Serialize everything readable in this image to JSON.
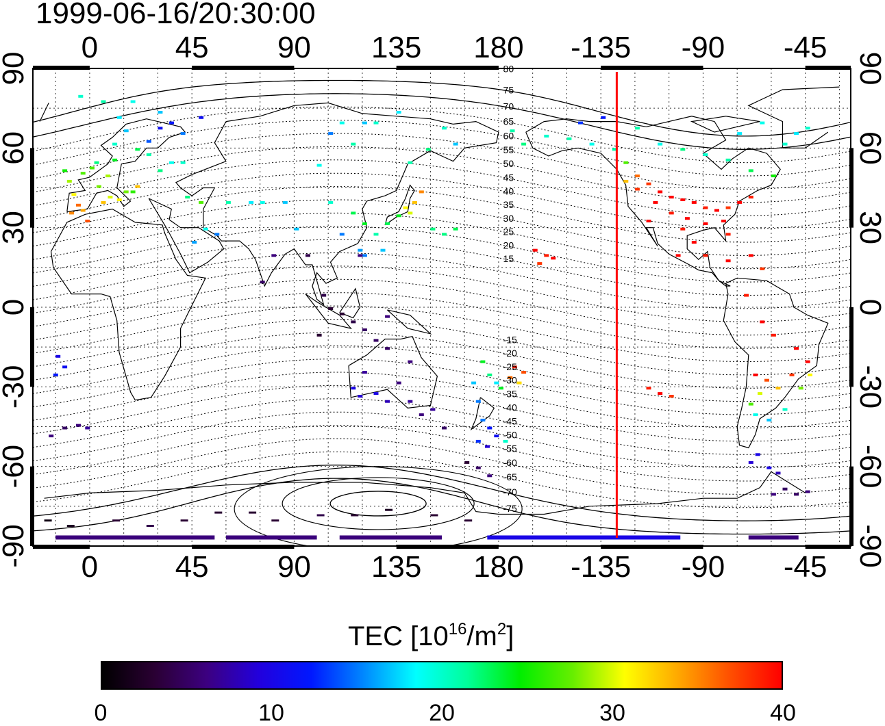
{
  "title": "1999-06-16/20:30:00",
  "map": {
    "projection": "equirectangular",
    "lon_range": [
      -25,
      335
    ],
    "lat_range": [
      -90,
      90
    ],
    "top_lon_ticks": [
      "0",
      "45",
      "90",
      "135",
      "180",
      "-135",
      "-90",
      "-45"
    ],
    "bottom_lon_ticks": [
      "0",
      "45",
      "90",
      "135",
      "180",
      "-135",
      "-90",
      "-45"
    ],
    "left_lat_ticks": [
      "90",
      "60",
      "30",
      "0",
      "-30",
      "-60",
      "-90"
    ],
    "right_lat_ticks": [
      "90",
      "60",
      "30",
      "0",
      "-30",
      "-60",
      "-90"
    ],
    "grid": true,
    "grid_spacing_deg": 15,
    "coastlines": true,
    "magnetic_latitude_contours": true,
    "magnetic_latitude_labels_north": [
      "80",
      "75",
      "70",
      "65",
      "60",
      "55",
      "50",
      "45",
      "40",
      "35",
      "30",
      "25",
      "20",
      "15"
    ],
    "magnetic_latitude_labels_south": [
      "-15",
      "-20",
      "-25",
      "-30",
      "-35",
      "-40",
      "-45",
      "-50",
      "-55",
      "-60",
      "-65",
      "-70",
      "-75"
    ],
    "reference_meridian": {
      "lon": -128,
      "color": "#ff0000"
    }
  },
  "colorbar": {
    "title": "TEC  [10",
    "title_exp": "16",
    "title_mid": "/m",
    "title_exp2": "2",
    "title_end": "]",
    "range": [
      0,
      40
    ],
    "tick_labels": [
      "0",
      "10",
      "20",
      "30",
      "40"
    ],
    "colormap": [
      "#000000",
      "#2a0033",
      "#3c0080",
      "#2200dd",
      "#0018ff",
      "#0088ff",
      "#00ffff",
      "#00ff99",
      "#00ee00",
      "#66ee00",
      "#ffff00",
      "#ffaa00",
      "#ff5000",
      "#ff0000"
    ]
  },
  "chart_data": {
    "type": "heatmap",
    "title": "1999-06-16/20:30:00",
    "value_label": "TEC [10^16/m^2]",
    "vrange": [
      0,
      40
    ],
    "cells": [
      [
        3,
        46,
        28
      ],
      [
        8,
        42,
        30
      ],
      [
        15,
        44,
        28
      ],
      [
        20,
        46,
        33
      ],
      [
        2,
        55,
        22
      ],
      [
        10,
        56,
        24
      ],
      [
        25,
        58,
        21
      ],
      [
        30,
        52,
        22
      ],
      [
        35,
        55,
        19
      ],
      [
        -10,
        48,
        29
      ],
      [
        -8,
        43,
        31
      ],
      [
        -6,
        39,
        36
      ],
      [
        -4,
        37,
        34
      ],
      [
        -2,
        33,
        37
      ],
      [
        -9,
        36,
        35
      ],
      [
        5,
        40,
        33
      ],
      [
        12,
        41,
        31
      ],
      [
        18,
        44,
        26
      ],
      [
        7,
        50,
        29
      ],
      [
        0,
        53,
        27
      ],
      [
        -4,
        51,
        27
      ],
      [
        -12,
        52,
        25
      ],
      [
        20,
        60,
        23
      ],
      [
        25,
        63,
        14
      ],
      [
        12,
        72,
        18
      ],
      [
        18,
        78,
        19
      ],
      [
        30,
        68,
        11
      ],
      [
        35,
        70,
        12
      ],
      [
        40,
        66,
        15
      ],
      [
        48,
        72,
        11
      ],
      [
        30,
        74,
        17
      ],
      [
        5,
        78,
        21
      ],
      [
        -5,
        80,
        20
      ],
      [
        10,
        62,
        20
      ],
      [
        15,
        67,
        17
      ],
      [
        40,
        55,
        20
      ],
      [
        42,
        42,
        22
      ],
      [
        48,
        40,
        27
      ],
      [
        60,
        40,
        21
      ],
      [
        70,
        40,
        18
      ],
      [
        75,
        40,
        19
      ],
      [
        85,
        40,
        17
      ],
      [
        90,
        30,
        17
      ],
      [
        50,
        30,
        19
      ],
      [
        55,
        28,
        15
      ],
      [
        45,
        25,
        16
      ],
      [
        105,
        40,
        20
      ],
      [
        115,
        36,
        23
      ],
      [
        120,
        32,
        24
      ],
      [
        125,
        28,
        21
      ],
      [
        130,
        32,
        23
      ],
      [
        135,
        35,
        24
      ],
      [
        138,
        38,
        31
      ],
      [
        142,
        40,
        33
      ],
      [
        145,
        44,
        35
      ],
      [
        140,
        36,
        30
      ],
      [
        128,
        22,
        17
      ],
      [
        118,
        22,
        16
      ],
      [
        110,
        28,
        15
      ],
      [
        120,
        20,
        15
      ],
      [
        150,
        30,
        22
      ],
      [
        155,
        28,
        22
      ],
      [
        160,
        30,
        23
      ],
      [
        105,
        66,
        15
      ],
      [
        115,
        62,
        21
      ],
      [
        120,
        70,
        17
      ],
      [
        125,
        70,
        20
      ],
      [
        135,
        74,
        18
      ],
      [
        100,
        54,
        19
      ],
      [
        140,
        55,
        21
      ],
      [
        148,
        60,
        22
      ],
      [
        160,
        62,
        17
      ],
      [
        155,
        68,
        20
      ],
      [
        110,
        70,
        19
      ],
      [
        102,
        5,
        4
      ],
      [
        105,
        0,
        3
      ],
      [
        110,
        -2,
        3
      ],
      [
        115,
        -5,
        4
      ],
      [
        120,
        -8,
        5
      ],
      [
        100,
        -10,
        3
      ],
      [
        125,
        -12,
        5
      ],
      [
        130,
        -3,
        6
      ],
      [
        118,
        20,
        6
      ],
      [
        75,
        10,
        5
      ],
      [
        80,
        20,
        6
      ],
      [
        95,
        20,
        4
      ],
      [
        130,
        -15,
        5
      ],
      [
        140,
        -20,
        6
      ],
      [
        135,
        -28,
        6
      ],
      [
        120,
        -24,
        7
      ],
      [
        115,
        -30,
        10
      ],
      [
        118,
        -33,
        9
      ],
      [
        125,
        -32,
        10
      ],
      [
        130,
        -35,
        8
      ],
      [
        140,
        -35,
        7
      ],
      [
        145,
        -40,
        6
      ],
      [
        150,
        -38,
        7
      ],
      [
        155,
        -45,
        5
      ],
      [
        165,
        -58,
        3
      ],
      [
        170,
        -60,
        5
      ],
      [
        175,
        -63,
        6
      ],
      [
        -15,
        -18,
        10
      ],
      [
        -12,
        -22,
        11
      ],
      [
        -16,
        -25,
        12
      ],
      [
        -18,
        -48,
        6
      ],
      [
        -12,
        -45,
        5
      ],
      [
        -6,
        -44,
        6
      ],
      [
        -2,
        -45,
        7
      ],
      [
        172,
        -20,
        24
      ],
      [
        175,
        -25,
        22
      ],
      [
        178,
        -28,
        18
      ],
      [
        168,
        -28,
        17
      ],
      [
        170,
        -35,
        15
      ],
      [
        172,
        -42,
        15
      ],
      [
        175,
        -45,
        12
      ],
      [
        178,
        -48,
        11
      ],
      [
        182,
        -50,
        20
      ],
      [
        180,
        -30,
        24
      ],
      [
        186,
        -22,
        39
      ],
      [
        190,
        -24,
        37
      ],
      [
        184,
        -26,
        36
      ],
      [
        188,
        -28,
        32
      ],
      [
        170,
        -50,
        13
      ],
      [
        174,
        -52,
        9
      ],
      [
        -165,
        22,
        40
      ],
      [
        -160,
        20,
        39
      ],
      [
        -163,
        17,
        38
      ],
      [
        -157,
        19,
        40
      ],
      [
        -130,
        60,
        21
      ],
      [
        -125,
        55,
        27
      ],
      [
        -120,
        50,
        36
      ],
      [
        -115,
        47,
        38
      ],
      [
        -110,
        44,
        40
      ],
      [
        -105,
        42,
        40
      ],
      [
        -100,
        41,
        40
      ],
      [
        -95,
        40,
        40
      ],
      [
        -90,
        38,
        39
      ],
      [
        -85,
        37,
        40
      ],
      [
        -80,
        38,
        38
      ],
      [
        -75,
        40,
        40
      ],
      [
        -70,
        42,
        39
      ],
      [
        -125,
        48,
        33
      ],
      [
        -120,
        45,
        38
      ],
      [
        -112,
        40,
        40
      ],
      [
        -105,
        36,
        39
      ],
      [
        -98,
        34,
        40
      ],
      [
        -90,
        32,
        40
      ],
      [
        -82,
        33,
        40
      ],
      [
        -80,
        28,
        39
      ],
      [
        -115,
        33,
        40
      ],
      [
        -100,
        30,
        39
      ],
      [
        -95,
        25,
        40
      ],
      [
        -102,
        20,
        40
      ],
      [
        -90,
        20,
        39
      ],
      [
        -80,
        18,
        40
      ],
      [
        -70,
        20,
        40
      ],
      [
        -65,
        15,
        38
      ],
      [
        -140,
        62,
        19
      ],
      [
        -150,
        64,
        21
      ],
      [
        -160,
        65,
        20
      ],
      [
        -170,
        62,
        22
      ],
      [
        -175,
        67,
        21
      ],
      [
        -145,
        70,
        13
      ],
      [
        -135,
        72,
        12
      ],
      [
        -120,
        68,
        21
      ],
      [
        -110,
        62,
        19
      ],
      [
        -100,
        60,
        22
      ],
      [
        -90,
        58,
        20
      ],
      [
        -80,
        56,
        21
      ],
      [
        -70,
        52,
        23
      ],
      [
        -60,
        50,
        25
      ],
      [
        -55,
        62,
        20
      ],
      [
        -50,
        66,
        18
      ],
      [
        -45,
        68,
        20
      ],
      [
        -65,
        70,
        19
      ],
      [
        -75,
        66,
        18
      ],
      [
        -72,
        5,
        39
      ],
      [
        -65,
        -5,
        40
      ],
      [
        -60,
        -10,
        39
      ],
      [
        -50,
        -15,
        40
      ],
      [
        -45,
        -20,
        40
      ],
      [
        -52,
        -25,
        38
      ],
      [
        -58,
        -30,
        33
      ],
      [
        -63,
        -27,
        37
      ],
      [
        -68,
        -25,
        40
      ],
      [
        -66,
        -32,
        30
      ],
      [
        -70,
        -36,
        27
      ],
      [
        -68,
        -40,
        19
      ],
      [
        -62,
        -42,
        17
      ],
      [
        -55,
        -38,
        20
      ],
      [
        -48,
        -30,
        28
      ],
      [
        -44,
        -25,
        31
      ],
      [
        -110,
        -32,
        40
      ],
      [
        -105,
        -33,
        38
      ],
      [
        -115,
        -30,
        39
      ],
      [
        -67,
        -55,
        10
      ],
      [
        -70,
        -58,
        9
      ],
      [
        -62,
        -60,
        10
      ],
      [
        -58,
        -62,
        8
      ],
      [
        -55,
        -68,
        5
      ],
      [
        -60,
        -70,
        6
      ],
      [
        -50,
        -70,
        5
      ],
      [
        -45,
        -69,
        6
      ],
      [
        -20,
        -80,
        1
      ],
      [
        -10,
        -82,
        2
      ],
      [
        10,
        -80,
        3
      ],
      [
        25,
        -82,
        4
      ],
      [
        40,
        -80,
        3
      ],
      [
        55,
        -77,
        3
      ],
      [
        70,
        -77,
        3
      ],
      [
        80,
        -80,
        3
      ],
      [
        100,
        -78,
        4
      ],
      [
        115,
        -78,
        3
      ],
      [
        130,
        -76,
        2
      ],
      [
        150,
        -78,
        3
      ],
      [
        165,
        -80,
        3
      ]
    ]
  }
}
